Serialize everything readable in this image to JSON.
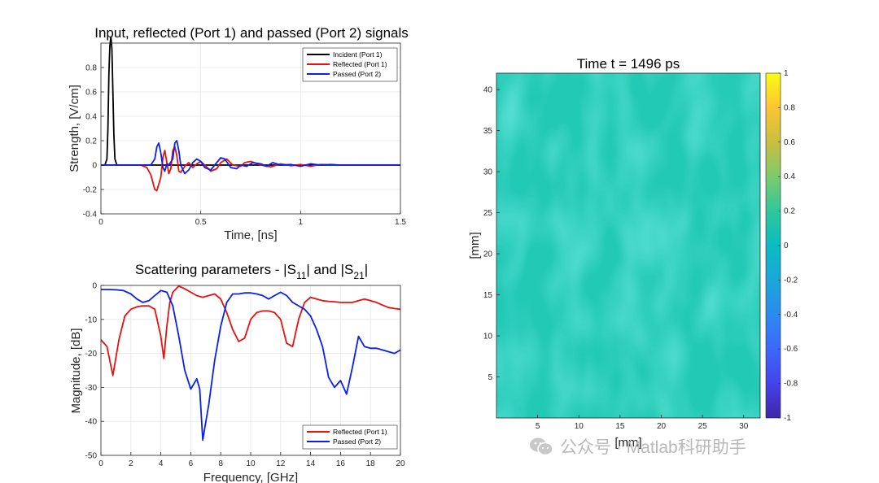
{
  "watermark": {
    "text": "公众号 · Matlab科研助手"
  },
  "colors": {
    "incident": "#000000",
    "reflected": "#e8110f",
    "passed": "#0b1ff0",
    "field": "#20c9b4"
  },
  "chart_data": [
    {
      "id": "signals",
      "type": "line",
      "title": "Input, reflected (Port 1) and passed (Port 2) signals",
      "xlabel": "Time, [ns]",
      "ylabel": "Strength, [V/cm]",
      "xlim": [
        0,
        1.5
      ],
      "ylim": [
        -0.4,
        1.0
      ],
      "xticks": [
        0,
        0.5,
        1,
        1.5
      ],
      "xtick_labels": [
        "0",
        "0.5",
        "1",
        "1.5"
      ],
      "yticks": [
        -0.4,
        -0.2,
        0,
        0.2,
        0.4,
        0.6,
        0.8
      ],
      "ytick_labels": [
        "-0.4",
        "-0.2",
        "0",
        "0.2",
        "0.4",
        "0.6",
        "0.8"
      ],
      "grid": true,
      "legend": "top-right",
      "series": [
        {
          "name": "Incident (Port 1)",
          "color": "#000000",
          "x": [
            0,
            0.02,
            0.03,
            0.035,
            0.04,
            0.045,
            0.05,
            0.055,
            0.06,
            0.065,
            0.07,
            0.08,
            1.5
          ],
          "y": [
            0,
            0,
            0.05,
            0.3,
            0.75,
            0.98,
            1.05,
            0.95,
            0.6,
            0.25,
            0.05,
            0,
            0
          ]
        },
        {
          "name": "Reflected (Port 1)",
          "color": "#e8110f",
          "x": [
            0,
            0.2,
            0.23,
            0.25,
            0.27,
            0.28,
            0.3,
            0.31,
            0.32,
            0.33,
            0.34,
            0.35,
            0.36,
            0.37,
            0.38,
            0.39,
            0.4,
            0.42,
            0.44,
            0.46,
            0.48,
            0.5,
            0.52,
            0.55,
            0.58,
            0.6,
            0.63,
            0.66,
            0.7,
            0.72,
            0.75,
            0.8,
            0.85,
            0.9,
            0.95,
            1.0,
            1.05,
            1.1,
            1.2,
            1.3,
            1.4,
            1.5
          ],
          "y": [
            0,
            0,
            -0.02,
            -0.08,
            -0.2,
            -0.21,
            -0.1,
            0.06,
            0.12,
            0.02,
            -0.07,
            -0.03,
            0.12,
            0.15,
            0.08,
            -0.05,
            -0.06,
            -0.01,
            0.02,
            -0.02,
            0.01,
            0.03,
            0.0,
            -0.05,
            -0.03,
            0.02,
            0.05,
            0.0,
            -0.01,
            0.02,
            0.03,
            0.0,
            -0.015,
            0.01,
            -0.005,
            0.005,
            -0.01,
            0.005,
            0,
            0,
            0,
            0
          ]
        },
        {
          "name": "Passed (Port 2)",
          "color": "#0b1ff0",
          "x": [
            0,
            0.25,
            0.27,
            0.28,
            0.29,
            0.3,
            0.31,
            0.32,
            0.33,
            0.34,
            0.36,
            0.37,
            0.38,
            0.39,
            0.4,
            0.42,
            0.44,
            0.46,
            0.48,
            0.5,
            0.52,
            0.55,
            0.58,
            0.6,
            0.62,
            0.65,
            0.68,
            0.7,
            0.73,
            0.76,
            0.8,
            0.83,
            0.86,
            0.9,
            0.95,
            1.0,
            1.05,
            1.1,
            1.15,
            1.2,
            1.3,
            1.4,
            1.5
          ],
          "y": [
            0,
            0,
            0.05,
            0.15,
            0.18,
            0.1,
            -0.02,
            -0.05,
            0.01,
            0.0,
            0.05,
            0.18,
            0.2,
            0.12,
            0.0,
            -0.07,
            -0.04,
            0.02,
            0.05,
            0.03,
            -0.02,
            -0.04,
            0.02,
            0.06,
            0.05,
            -0.02,
            -0.03,
            0.0,
            -0.01,
            0.02,
            0.01,
            -0.01,
            0.02,
            0.0,
            0.005,
            -0.01,
            0.01,
            0.0,
            0.005,
            0,
            0,
            0,
            0
          ]
        }
      ]
    },
    {
      "id": "sparams",
      "type": "line",
      "title_main": "Scattering parameters - |S",
      "title_sub1": "11",
      "title_mid": "| and |S",
      "title_sub2": "21",
      "title_end": "|",
      "xlabel": "Frequency, [GHz]",
      "ylabel": "Magnitude, [dB]",
      "xlim": [
        0,
        20
      ],
      "ylim": [
        -50,
        0
      ],
      "xticks": [
        0,
        2,
        4,
        6,
        8,
        10,
        12,
        14,
        16,
        18,
        20
      ],
      "xtick_labels": [
        "0",
        "2",
        "4",
        "6",
        "8",
        "10",
        "12",
        "14",
        "16",
        "18",
        "20"
      ],
      "yticks": [
        -50,
        -40,
        -30,
        -20,
        -10,
        0
      ],
      "ytick_labels": [
        "-50",
        "-40",
        "-30",
        "-20",
        "-10",
        "0"
      ],
      "grid": true,
      "legend": "bottom-right",
      "series": [
        {
          "name": "Reflected (Port 1)",
          "color": "#e8110f",
          "x": [
            0,
            0.4,
            0.8,
            1.2,
            1.6,
            2,
            2.4,
            2.8,
            3.2,
            3.6,
            4.0,
            4.2,
            4.4,
            4.6,
            4.8,
            5.2,
            5.6,
            6.0,
            6.4,
            6.8,
            7.2,
            7.6,
            8.0,
            8.4,
            8.8,
            9.2,
            9.6,
            10.0,
            10.4,
            10.8,
            11.2,
            11.6,
            12.0,
            12.4,
            12.8,
            13.2,
            13.6,
            14.0,
            14.4,
            14.8,
            15.2,
            15.6,
            16.0,
            16.4,
            16.8,
            17.2,
            17.6,
            18.0,
            18.4,
            18.8,
            19.2,
            19.6,
            20.0
          ],
          "y": [
            -16,
            -18,
            -26.5,
            -16,
            -9,
            -7,
            -6.3,
            -6,
            -6,
            -7,
            -15,
            -21.5,
            -12,
            -5,
            -2,
            -0.2,
            -1,
            -2,
            -3,
            -3.5,
            -3,
            -2.5,
            -4,
            -8,
            -13,
            -16.5,
            -15.5,
            -10,
            -8,
            -7.5,
            -7.5,
            -8,
            -10,
            -17,
            -18,
            -10,
            -5,
            -3.5,
            -4,
            -4.5,
            -4.7,
            -4.8,
            -5,
            -5,
            -5,
            -4.5,
            -4,
            -4.5,
            -5,
            -5.8,
            -6.5,
            -6.8,
            -7
          ]
        },
        {
          "name": "Passed (Port 2)",
          "color": "#0b1ff0",
          "x": [
            0,
            0.5,
            1,
            1.5,
            2,
            2.4,
            2.8,
            3.2,
            3.6,
            4.0,
            4.4,
            4.8,
            5.2,
            5.6,
            6.0,
            6.4,
            6.6,
            6.8,
            7.2,
            7.6,
            8.0,
            8.4,
            8.8,
            9.2,
            9.6,
            10.0,
            10.4,
            10.8,
            11.2,
            11.6,
            12.0,
            12.4,
            12.8,
            13.2,
            13.6,
            14.0,
            14.4,
            14.8,
            15.2,
            15.6,
            16.0,
            16.4,
            16.8,
            17.2,
            17.6,
            18.0,
            18.4,
            18.8,
            19.2,
            19.6,
            20.0
          ],
          "y": [
            -1.2,
            -1.2,
            -1.3,
            -1.5,
            -2.5,
            -4,
            -5,
            -4.5,
            -3,
            -1.5,
            -2,
            -6,
            -15,
            -25,
            -30.5,
            -27.5,
            -30.5,
            -45.5,
            -35,
            -22,
            -12,
            -5,
            -2.5,
            -2.5,
            -2.2,
            -2.2,
            -2.5,
            -3,
            -4,
            -3,
            -2,
            -3,
            -5,
            -6,
            -7,
            -9,
            -13,
            -18,
            -27,
            -30,
            -28,
            -32,
            -24,
            -15,
            -18,
            -18.5,
            -18.5,
            -19,
            -19.5,
            -20,
            -19
          ]
        }
      ]
    },
    {
      "id": "field",
      "type": "heatmap",
      "title": "Time t = 1496 ps",
      "xlabel": "[mm]",
      "ylabel": "[mm]",
      "xlim": [
        0,
        32
      ],
      "ylim": [
        0,
        42
      ],
      "xticks": [
        5,
        10,
        15,
        20,
        25,
        30
      ],
      "xtick_labels": [
        "5",
        "10",
        "15",
        "20",
        "25",
        "30"
      ],
      "yticks": [
        5,
        10,
        15,
        20,
        25,
        30,
        35,
        40
      ],
      "ytick_labels": [
        "5",
        "10",
        "15",
        "20",
        "25",
        "30",
        "35",
        "40"
      ],
      "colorbar": {
        "range": [
          -1,
          1
        ],
        "ticks": [
          -1,
          -0.8,
          -0.6,
          -0.4,
          -0.2,
          0,
          0.2,
          0.4,
          0.6,
          0.8,
          1
        ],
        "tick_labels": [
          "-1",
          "-0.8",
          "-0.6",
          "-0.4",
          "-0.2",
          "0",
          "0.2",
          "0.4",
          "0.6",
          "0.8",
          "1"
        ]
      },
      "field_value_approx": 0.0
    }
  ]
}
